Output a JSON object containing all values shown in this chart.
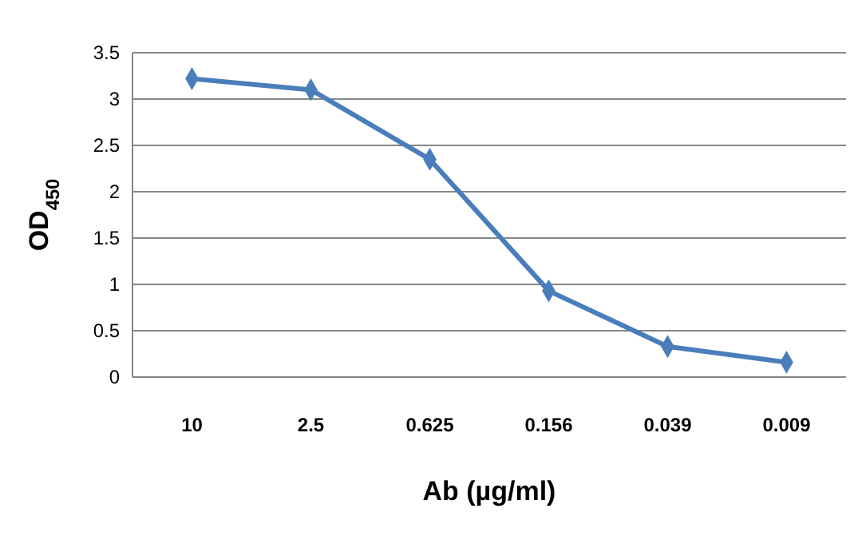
{
  "chart_data": {
    "type": "line",
    "xlabel": "Ab (µg/ml)",
    "ylabel": "OD$_{450}$",
    "categories": [
      "10",
      "2.5",
      "0.625",
      "0.156",
      "0.039",
      "0.009"
    ],
    "series": [
      {
        "color": "#4a7ebb",
        "values": [
          3.22,
          3.1,
          2.35,
          0.93,
          0.33,
          0.16
        ]
      }
    ],
    "ylim": [
      0,
      3.5
    ],
    "yticks": [
      0,
      0.5,
      1,
      1.5,
      2,
      2.5,
      3,
      3.5
    ],
    "grid": "y",
    "marker": "diamond",
    "line_style": "solid"
  }
}
